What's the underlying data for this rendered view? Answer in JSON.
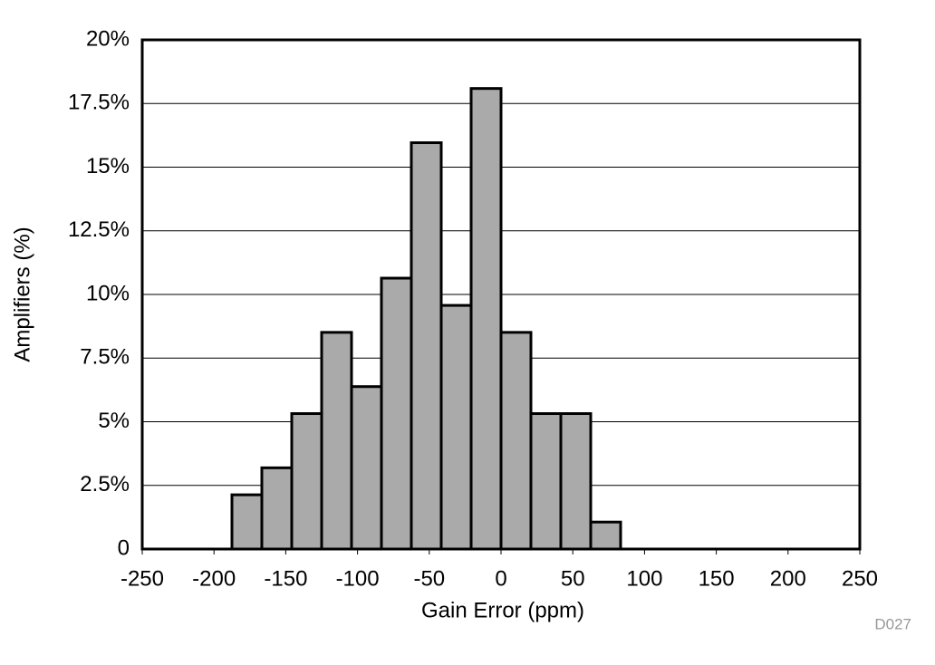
{
  "chart_data": {
    "type": "histogram",
    "x_label": "Gain Error (ppm)",
    "y_label": "Amplifiers (%)",
    "annotation": "D027",
    "bins": [
      -187.5,
      -166.67,
      -145.83,
      -125,
      -104.17,
      -83.33,
      -62.5,
      -41.67,
      -20.83,
      0,
      20.83,
      41.67,
      62.5,
      83.33
    ],
    "values": [
      2.13,
      3.19,
      5.32,
      8.51,
      6.38,
      10.64,
      15.96,
      9.57,
      18.09,
      8.51,
      5.32,
      5.32,
      1.06
    ],
    "color": "#aaaaaa",
    "xlim": [
      -250,
      250
    ],
    "xticks": [
      -250,
      -200,
      -150,
      -100,
      -50,
      0,
      50,
      100,
      150,
      200,
      250
    ],
    "ylim": [
      0,
      20
    ],
    "yticks": [
      0,
      {
        "value": 2.5,
        "label": "2.5%"
      },
      {
        "value": 5,
        "label": "5%"
      },
      {
        "value": 7.5,
        "label": "7.5%"
      },
      {
        "value": 10,
        "label": "10%"
      },
      {
        "value": 12.5,
        "label": "12.5%"
      },
      {
        "value": 15,
        "label": "15%"
      },
      {
        "value": 17.5,
        "label": "17.5%"
      },
      {
        "value": 20,
        "label": "20%"
      }
    ],
    "grid": true
  }
}
